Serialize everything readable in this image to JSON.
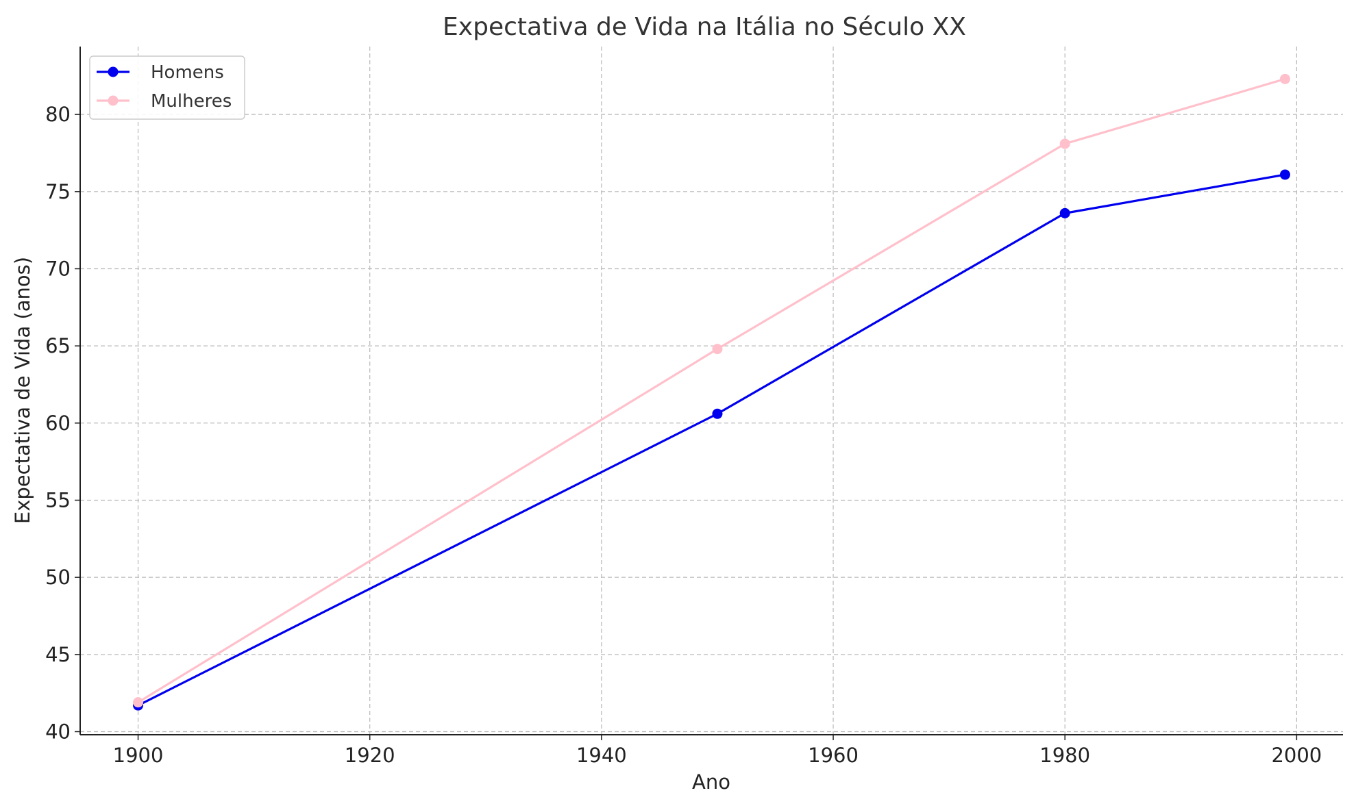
{
  "chart_data": {
    "type": "line",
    "title": "Expectativa de Vida na Itália no Século XX",
    "xlabel": "Ano",
    "ylabel": "Expectativa de Vida (anos)",
    "xlim": [
      1895,
      2004
    ],
    "ylim": [
      39.8,
      84.4
    ],
    "xticks": [
      1900,
      1920,
      1940,
      1960,
      1980,
      2000
    ],
    "yticks": [
      40,
      45,
      50,
      55,
      60,
      65,
      70,
      75,
      80
    ],
    "grid": true,
    "legend_position": "top-left",
    "series": [
      {
        "name": "Homens",
        "color": "#0000ee",
        "points": [
          {
            "x": 1900,
            "y": 41.7
          },
          {
            "x": 1950,
            "y": 60.6
          },
          {
            "x": 1980,
            "y": 73.6
          },
          {
            "x": 1999,
            "y": 76.1
          }
        ]
      },
      {
        "name": "Mulheres",
        "color": "#ffc0cb",
        "points": [
          {
            "x": 1900,
            "y": 41.9
          },
          {
            "x": 1950,
            "y": 64.8
          },
          {
            "x": 1980,
            "y": 78.1
          },
          {
            "x": 1999,
            "y": 82.3
          }
        ]
      }
    ]
  }
}
